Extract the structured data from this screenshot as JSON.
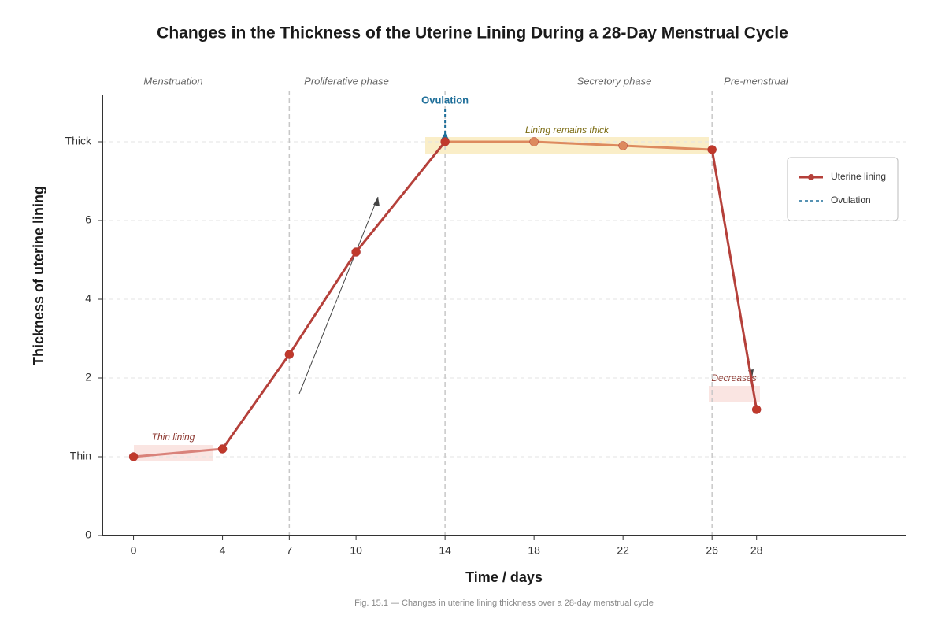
{
  "chart_data": {
    "type": "line",
    "title": "Changes in the Thickness of the Uterine Lining During a 28-Day Menstrual Cycle",
    "x_label": "Time / days",
    "y_label": "Thickness of uterine lining",
    "caption": "Fig. 15.1 — Changes in uterine lining thickness over a 28-day menstrual cycle",
    "x": [
      0,
      4,
      7,
      10,
      14,
      18,
      22,
      26,
      28
    ],
    "series": [
      {
        "name": "Uterine lining",
        "color": "#b5403a",
        "values": [
          1,
          1.1,
          2.6,
          5.2,
          8,
          8,
          7.9,
          7.8,
          1.6
        ],
        "segment_colors": [
          "#d9827a",
          "#b5403a",
          "#b5403a",
          "#b5403a",
          "#dd8a5e",
          "#dd8a5e",
          "#dd8a5e",
          "#b5403a"
        ],
        "marker_colors": [
          "#c0392b",
          "#c0392b",
          "#c0392b",
          "#c0392b",
          "#c0392b",
          "#dd8a5e",
          "#dd8a5e",
          "#c0392b",
          "#c0392b"
        ]
      }
    ],
    "ovulation": {
      "label": "Ovulation",
      "day": 14,
      "color": "#1f6f9a"
    },
    "phase_boundaries": [
      7,
      14,
      26
    ],
    "phases": [
      "Menstruation",
      "Proliferative phase",
      "Secretory phase",
      "Pre-menstrual"
    ],
    "annotations": [
      "Thin lining",
      "Lining remains thick",
      "Decreases"
    ],
    "xlim": [
      -1.4,
      34.7
    ],
    "xticks": [
      0,
      4,
      7,
      10,
      14,
      18,
      22,
      26,
      28
    ],
    "ylim": [
      0,
      9.2
    ],
    "yticks": [
      0,
      {
        "value": 1,
        "label": "Thin"
      },
      2,
      4,
      6,
      {
        "value": 8,
        "label": "Thick"
      }
    ],
    "grid": true,
    "legend": "upper right"
  }
}
